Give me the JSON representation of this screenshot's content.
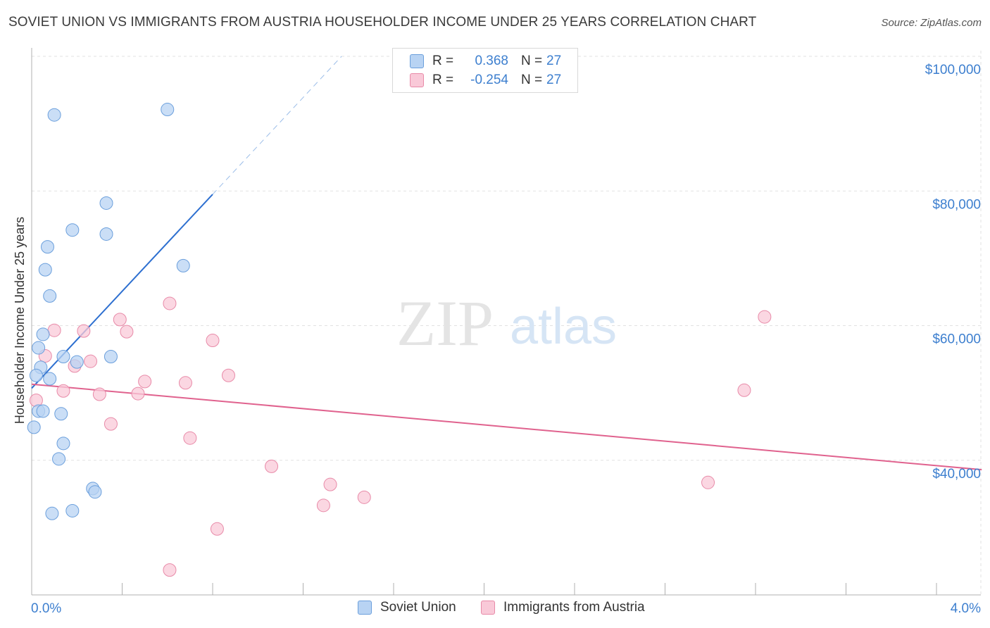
{
  "header": {
    "title": "SOVIET UNION VS IMMIGRANTS FROM AUSTRIA HOUSEHOLDER INCOME UNDER 25 YEARS CORRELATION CHART",
    "source": "Source: ZipAtlas.com"
  },
  "watermark": {
    "zip": "ZIP",
    "atlas": "atlas"
  },
  "legend": {
    "rows": [
      {
        "r_label": "R =",
        "r_value": "0.368",
        "n_label": "N =",
        "n_value": "27"
      },
      {
        "r_label": "R =",
        "r_value": "-0.254",
        "n_label": "N =",
        "n_value": "27"
      }
    ]
  },
  "colors": {
    "soviet_fill": "#b8d3f3",
    "soviet_stroke": "#6b9fdc",
    "soviet_line": "#2d6fd0",
    "austria_fill": "#f9c9d8",
    "austria_stroke": "#e88aa8",
    "austria_line": "#e0628e",
    "tick_text": "#3d7fcf",
    "grid": "#e2e2e2"
  },
  "chart_data": {
    "type": "scatter",
    "title": "SOVIET UNION VS IMMIGRANTS FROM AUSTRIA HOUSEHOLDER INCOME UNDER 25 YEARS CORRELATION CHART",
    "xlabel": "",
    "ylabel": "Householder Income Under 25 years",
    "xlim": [
      0,
      4.2
    ],
    "ylim": [
      20000,
      102000
    ],
    "x_tick_labels": [
      "0.0%",
      "4.0%"
    ],
    "y_ticks": [
      {
        "value": 40000,
        "label": "$40,000"
      },
      {
        "value": 60000,
        "label": "$60,000"
      },
      {
        "value": 80000,
        "label": "$80,000"
      },
      {
        "value": 100000,
        "label": "$100,000"
      }
    ],
    "grid": true,
    "series": [
      {
        "name": "Soviet Union",
        "r": 0.368,
        "n": 27,
        "points": [
          [
            0.1,
            91300
          ],
          [
            0.6,
            92100
          ],
          [
            0.33,
            78200
          ],
          [
            0.18,
            74200
          ],
          [
            0.33,
            73600
          ],
          [
            0.07,
            71700
          ],
          [
            0.67,
            68900
          ],
          [
            0.06,
            68300
          ],
          [
            0.08,
            64400
          ],
          [
            0.05,
            58700
          ],
          [
            0.03,
            56700
          ],
          [
            0.14,
            55400
          ],
          [
            0.35,
            55400
          ],
          [
            0.2,
            54600
          ],
          [
            0.04,
            53800
          ],
          [
            0.02,
            52600
          ],
          [
            0.08,
            52100
          ],
          [
            0.03,
            47300
          ],
          [
            0.05,
            47300
          ],
          [
            0.13,
            46900
          ],
          [
            0.01,
            44900
          ],
          [
            0.14,
            42500
          ],
          [
            0.12,
            40200
          ],
          [
            0.27,
            35800
          ],
          [
            0.28,
            35300
          ],
          [
            0.18,
            32500
          ],
          [
            0.09,
            32100
          ]
        ],
        "trend": {
          "x": [
            0.0,
            0.8
          ],
          "y": [
            50700,
            79500
          ],
          "dashed_x": [
            0.8,
            1.37
          ],
          "dashed_y": [
            79500,
            100000
          ]
        }
      },
      {
        "name": "Immigrants from Austria",
        "r": -0.254,
        "n": 27,
        "points": [
          [
            0.61,
            63300
          ],
          [
            3.24,
            61300
          ],
          [
            0.39,
            60900
          ],
          [
            0.1,
            59300
          ],
          [
            0.23,
            59200
          ],
          [
            0.42,
            59100
          ],
          [
            0.8,
            57800
          ],
          [
            0.06,
            55500
          ],
          [
            0.26,
            54700
          ],
          [
            0.19,
            54000
          ],
          [
            0.87,
            52600
          ],
          [
            0.5,
            51700
          ],
          [
            0.68,
            51500
          ],
          [
            0.14,
            50300
          ],
          [
            3.15,
            50400
          ],
          [
            0.3,
            49800
          ],
          [
            0.47,
            49900
          ],
          [
            0.02,
            48900
          ],
          [
            0.35,
            45400
          ],
          [
            0.7,
            43300
          ],
          [
            1.06,
            39100
          ],
          [
            1.32,
            36400
          ],
          [
            2.99,
            36700
          ],
          [
            1.47,
            34500
          ],
          [
            1.29,
            33300
          ],
          [
            0.82,
            29800
          ],
          [
            0.61,
            23700
          ]
        ],
        "trend": {
          "x": [
            0.0,
            4.2
          ],
          "y": [
            51300,
            38600
          ]
        }
      }
    ]
  },
  "bottom_legend": {
    "soviet": "Soviet Union",
    "austria": "Immigrants from Austria"
  }
}
